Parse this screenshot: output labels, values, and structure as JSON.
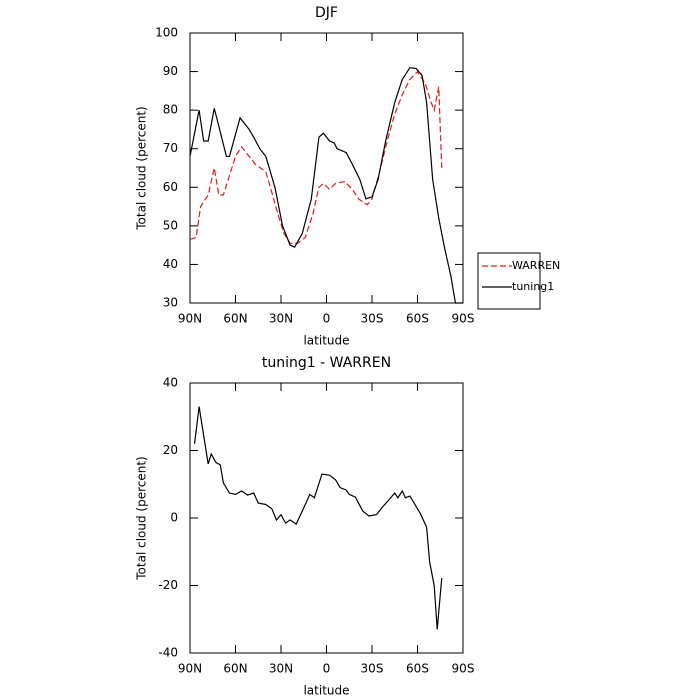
{
  "chart_data": [
    {
      "type": "line",
      "title": "DJF",
      "x_label": "latitude",
      "y_label": "Total cloud (percent)",
      "xlim": [
        90,
        -90
      ],
      "ylim": [
        30,
        100
      ],
      "xticks": [
        {
          "value": 90,
          "label": "90N"
        },
        {
          "value": 60,
          "label": "60N"
        },
        {
          "value": 30,
          "label": "30N"
        },
        0,
        {
          "value": -30,
          "label": "30S"
        },
        {
          "value": -60,
          "label": "60S"
        },
        {
          "value": -90,
          "label": "90S"
        }
      ],
      "yticks": [
        30,
        40,
        50,
        60,
        70,
        80,
        90,
        100
      ],
      "legend": "outside right",
      "series": [
        {
          "name": "WARREN",
          "color": "#e31a1c",
          "linestyle": "dashed",
          "x": [
            90,
            86,
            83,
            78,
            74,
            71,
            68,
            64,
            60,
            56,
            51,
            47,
            40,
            37,
            32,
            28,
            24,
            19,
            14,
            9,
            5,
            2,
            -2,
            -6,
            -12,
            -17,
            -21,
            -27,
            -30,
            -35,
            -40,
            -45,
            -50,
            -55,
            -60,
            -65,
            -69,
            -71,
            -74,
            -76
          ],
          "values": [
            46.5,
            47,
            55,
            58,
            65,
            58,
            58,
            63,
            68,
            70.5,
            68,
            66,
            64,
            60,
            53,
            48,
            45.5,
            45.5,
            47,
            53,
            60,
            61,
            59.5,
            61,
            61.5,
            59.5,
            57,
            55.5,
            57,
            64,
            72,
            79,
            84,
            88,
            90,
            87,
            82,
            80,
            86,
            65
          ]
        },
        {
          "name": "tuning1",
          "color": "#000000",
          "linestyle": "solid",
          "x": [
            90,
            84,
            81,
            78,
            74,
            66,
            64,
            57,
            51,
            48,
            44,
            40,
            34,
            29,
            24,
            21,
            16,
            10,
            5,
            2,
            -2,
            -5,
            -7,
            -13,
            -17,
            -22,
            -26,
            -30,
            -34,
            -39,
            -45,
            -50,
            -55,
            -59,
            -63,
            -66,
            -70,
            -74,
            -78,
            -82,
            -85,
            -90
          ],
          "values": [
            68,
            80,
            72,
            72,
            80.5,
            68,
            68,
            78,
            75,
            73,
            70,
            68,
            60,
            50,
            45,
            44.5,
            48,
            57,
            73,
            74,
            72,
            71.5,
            70,
            69,
            66,
            62,
            57,
            57.5,
            62,
            72,
            82,
            88,
            91,
            90.8,
            89,
            82,
            62,
            52,
            44,
            37,
            30,
            30
          ]
        }
      ]
    },
    {
      "type": "line",
      "title": "tuning1 - WARREN",
      "x_label": "latitude",
      "y_label": "Total cloud (percent)",
      "xlim": [
        90,
        -90
      ],
      "ylim": [
        -40,
        40
      ],
      "xticks": [
        {
          "value": 90,
          "label": "90N"
        },
        {
          "value": 60,
          "label": "60N"
        },
        {
          "value": 30,
          "label": "30N"
        },
        0,
        {
          "value": -30,
          "label": "30S"
        },
        {
          "value": -60,
          "label": "60S"
        },
        {
          "value": -90,
          "label": "90S"
        }
      ],
      "yticks": [
        -40,
        -20,
        0,
        20,
        40
      ],
      "series": [
        {
          "color": "#000000",
          "linestyle": "solid",
          "x": [
            87,
            84,
            78,
            76,
            73,
            70,
            68,
            64,
            60,
            56,
            52,
            48,
            45,
            40,
            36,
            33,
            30,
            27,
            24,
            20,
            15,
            11,
            8,
            3,
            -2,
            -6,
            -9,
            -13,
            -15,
            -19,
            -24,
            -28,
            -33,
            -37,
            -41,
            -45,
            -47,
            -50,
            -52,
            -55,
            -59,
            -62,
            -66,
            -68,
            -71,
            -73,
            -76
          ],
          "values": [
            22,
            33,
            16,
            19,
            16.5,
            15.7,
            10.4,
            7.4,
            7,
            8,
            6.8,
            7.4,
            4.4,
            4,
            2.7,
            -0.6,
            1,
            -1.5,
            -0.6,
            -1.8,
            3,
            7,
            6,
            13,
            12.7,
            11.3,
            9,
            8.3,
            7,
            6.2,
            2,
            0.6,
            1,
            3.3,
            5.3,
            7.4,
            6,
            8,
            6,
            6.5,
            3.5,
            1.2,
            -2.7,
            -13,
            -20,
            -33,
            -17.8
          ]
        }
      ]
    }
  ]
}
